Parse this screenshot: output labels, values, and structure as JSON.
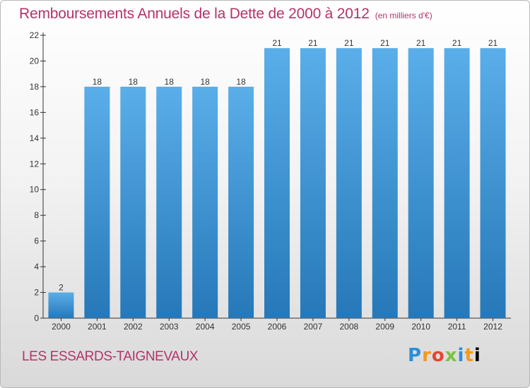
{
  "header": {
    "title": "Remboursements Annuels de la Dette de 2000 à 2012",
    "unit": "(en milliers d'€)"
  },
  "footer": {
    "commune": "LES ESSARDS-TAIGNEVAUX",
    "logo": "Proxiti"
  },
  "colors": {
    "title": "#b3336b",
    "bar_top": "#5aaee9",
    "bar_bottom": "#2678b8",
    "axis": "#333333"
  },
  "chart_data": {
    "type": "bar",
    "title": "Remboursements Annuels de la Dette de 2000 à 2012",
    "xlabel": "",
    "ylabel": "",
    "categories": [
      "2000",
      "2001",
      "2002",
      "2003",
      "2004",
      "2005",
      "2006",
      "2007",
      "2008",
      "2009",
      "2010",
      "2011",
      "2012"
    ],
    "values": [
      2,
      18,
      18,
      18,
      18,
      18,
      21,
      21,
      21,
      21,
      21,
      21,
      21
    ],
    "ylim": [
      0,
      22
    ],
    "yticks": [
      0,
      2,
      4,
      6,
      8,
      10,
      12,
      14,
      16,
      18,
      20,
      22
    ],
    "grid": false,
    "legend": "none"
  }
}
